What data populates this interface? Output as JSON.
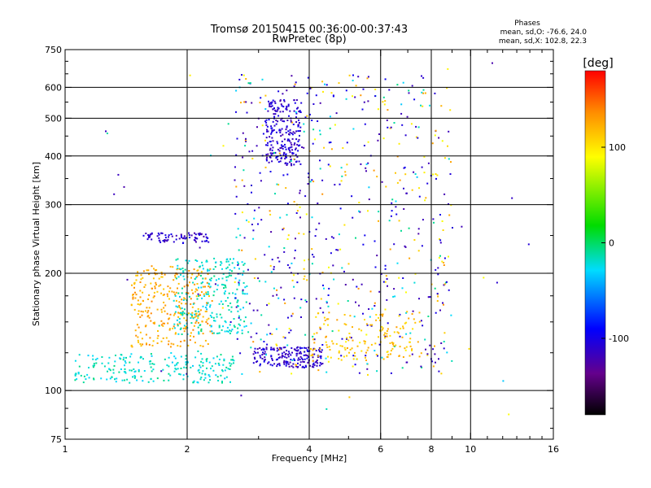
{
  "chart_data": {
    "type": "scatter",
    "title": "Tromsø 20150415 00:36:00-00:37:43",
    "subtitle": "RwPretec (8p)",
    "xlabel": "Frequency [MHz]",
    "ylabel": "Stationary phase Virtual Height [km]",
    "x_scale": "log",
    "y_scale": "log",
    "xlim": [
      1,
      16
    ],
    "ylim": [
      75,
      750
    ],
    "x_ticks": [
      {
        "value": 1,
        "label": "1"
      },
      {
        "value": 2,
        "label": "2"
      },
      {
        "value": 4,
        "label": "4"
      },
      {
        "value": 6,
        "label": "6"
      },
      {
        "value": 8,
        "label": "8"
      },
      {
        "value": 10,
        "label": "10"
      },
      {
        "value": 16,
        "label": "16"
      }
    ],
    "y_ticks": [
      {
        "value": 75,
        "label": "75"
      },
      {
        "value": 100,
        "label": "100"
      },
      {
        "value": 200,
        "label": "200"
      },
      {
        "value": 300,
        "label": "300"
      },
      {
        "value": 400,
        "label": "400"
      },
      {
        "value": 500,
        "label": "500"
      },
      {
        "value": 600,
        "label": "600"
      },
      {
        "value": 750,
        "label": "750"
      }
    ],
    "grid_x": [
      2,
      4,
      6,
      8,
      10
    ],
    "grid_y": [
      100,
      200,
      300,
      400,
      500,
      600
    ],
    "grid": true,
    "stats_title": "Phases",
    "stats_lines": [
      "mean, sd,O: -76.6, 24.0",
      "mean, sd,X: 102.8, 22.3"
    ],
    "colorbar": {
      "label": "[deg]",
      "range": [
        -180,
        180
      ],
      "ticks": [
        {
          "value": 100,
          "label": "100"
        },
        {
          "value": 0,
          "label": "0"
        },
        {
          "value": -100,
          "label": "-100"
        }
      ],
      "colormap": "rainbow"
    },
    "clusters": [
      {
        "name": "low-cyan",
        "xmin": 1.05,
        "xmax": 2.6,
        "ymin": 105,
        "ymax": 125,
        "phase": -20,
        "count": 220
      },
      {
        "name": "orange-low",
        "xmin": 1.45,
        "xmax": 2.3,
        "ymin": 130,
        "ymax": 210,
        "phase": 125,
        "count": 300
      },
      {
        "name": "cyan-mid",
        "xmin": 1.85,
        "xmax": 2.8,
        "ymin": 140,
        "ymax": 220,
        "phase": -20,
        "count": 250
      },
      {
        "name": "blue-band-250",
        "xmin": 1.55,
        "xmax": 2.25,
        "ymin": 240,
        "ymax": 255,
        "phase": -110,
        "count": 80
      },
      {
        "name": "blue-lower-band",
        "xmin": 2.9,
        "xmax": 4.3,
        "ymin": 115,
        "ymax": 130,
        "phase": -110,
        "count": 180
      },
      {
        "name": "blue-f-region",
        "xmin": 3.1,
        "xmax": 3.8,
        "ymin": 380,
        "ymax": 560,
        "phase": -110,
        "count": 220
      },
      {
        "name": "mixed-scatter",
        "xmin": 2.6,
        "xmax": 9.0,
        "ymin": 110,
        "ymax": 650,
        "phase": 0,
        "count": 650
      },
      {
        "name": "yellow-lower",
        "xmin": 4.0,
        "xmax": 7.5,
        "ymin": 120,
        "ymax": 160,
        "phase": 115,
        "count": 140
      },
      {
        "name": "sparse-high",
        "xmin": 1.2,
        "xmax": 14.0,
        "ymin": 80,
        "ymax": 720,
        "phase": 60,
        "count": 60
      }
    ]
  }
}
